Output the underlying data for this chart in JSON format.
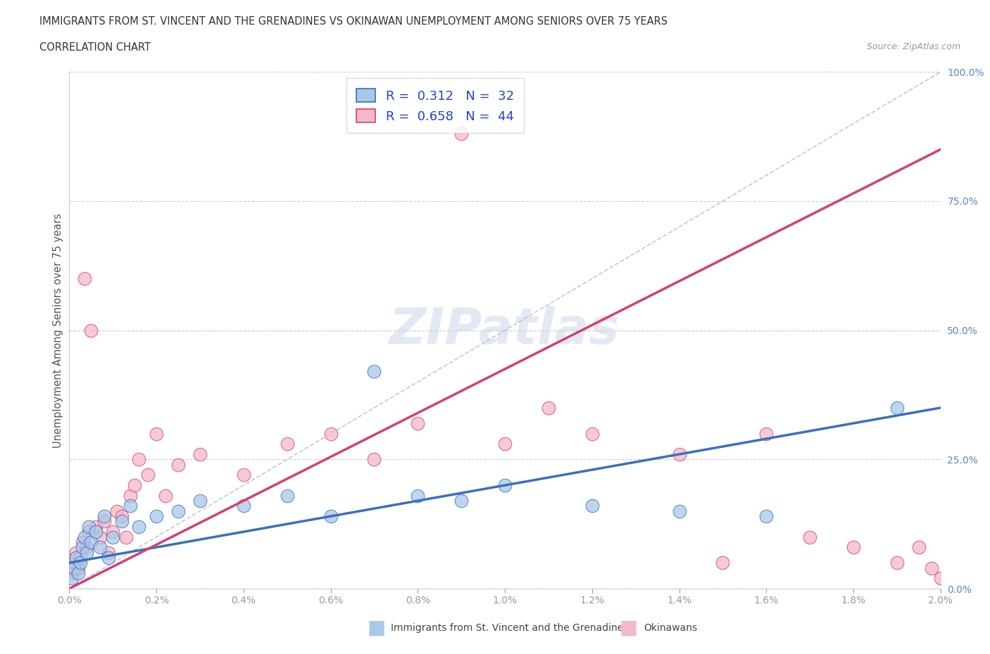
{
  "title_line1": "IMMIGRANTS FROM ST. VINCENT AND THE GRENADINES VS OKINAWAN UNEMPLOYMENT AMONG SENIORS OVER 75 YEARS",
  "title_line2": "CORRELATION CHART",
  "source": "Source: ZipAtlas.com",
  "ylabel": "Unemployment Among Seniors over 75 years",
  "blue_label": "Immigrants from St. Vincent and the Grenadines",
  "pink_label": "Okinawans",
  "blue_R": 0.312,
  "blue_N": 32,
  "pink_R": 0.658,
  "pink_N": 44,
  "blue_color": "#a8c8e8",
  "pink_color": "#f4b8c8",
  "blue_line_color": "#3a6fbf",
  "pink_line_color": "#d44070",
  "xlim": [
    0.0,
    0.02
  ],
  "ylim": [
    0.0,
    1.0
  ],
  "xtick_labels": [
    "0.0%",
    "0.2%",
    "0.4%",
    "0.6%",
    "0.8%",
    "1.0%",
    "1.2%",
    "1.4%",
    "1.6%",
    "1.8%",
    "2.0%"
  ],
  "xtick_values": [
    0.0,
    0.002,
    0.004,
    0.006,
    0.008,
    0.01,
    0.012,
    0.014,
    0.016,
    0.018,
    0.02
  ],
  "ytick_labels": [
    "0.0%",
    "25.0%",
    "50.0%",
    "75.0%",
    "100.0%"
  ],
  "ytick_values": [
    0.0,
    0.25,
    0.5,
    0.75,
    1.0
  ],
  "blue_x": [
    5e-05,
    0.0001,
    0.00015,
    0.0002,
    0.00025,
    0.0003,
    0.00035,
    0.0004,
    0.00045,
    0.0005,
    0.0006,
    0.0007,
    0.0008,
    0.0009,
    0.001,
    0.0012,
    0.0014,
    0.0016,
    0.002,
    0.0025,
    0.003,
    0.004,
    0.005,
    0.006,
    0.007,
    0.008,
    0.009,
    0.01,
    0.012,
    0.014,
    0.016,
    0.019
  ],
  "blue_y": [
    0.02,
    0.04,
    0.06,
    0.03,
    0.05,
    0.08,
    0.1,
    0.07,
    0.12,
    0.09,
    0.11,
    0.08,
    0.14,
    0.06,
    0.1,
    0.13,
    0.16,
    0.12,
    0.14,
    0.15,
    0.17,
    0.16,
    0.18,
    0.14,
    0.42,
    0.18,
    0.17,
    0.2,
    0.16,
    0.15,
    0.14,
    0.35
  ],
  "pink_x": [
    5e-05,
    0.0001,
    0.00015,
    0.0002,
    0.00025,
    0.0003,
    0.00035,
    0.0004,
    0.00045,
    0.0005,
    0.0006,
    0.0007,
    0.0008,
    0.0009,
    0.001,
    0.0011,
    0.0012,
    0.0013,
    0.0014,
    0.0015,
    0.0016,
    0.0018,
    0.002,
    0.0022,
    0.0025,
    0.003,
    0.004,
    0.005,
    0.006,
    0.007,
    0.008,
    0.009,
    0.01,
    0.011,
    0.012,
    0.014,
    0.015,
    0.016,
    0.017,
    0.018,
    0.019,
    0.0195,
    0.0198,
    0.02
  ],
  "pink_y": [
    0.03,
    0.05,
    0.07,
    0.04,
    0.06,
    0.09,
    0.6,
    0.08,
    0.11,
    0.5,
    0.12,
    0.1,
    0.13,
    0.07,
    0.11,
    0.15,
    0.14,
    0.1,
    0.18,
    0.2,
    0.25,
    0.22,
    0.3,
    0.18,
    0.24,
    0.26,
    0.22,
    0.28,
    0.3,
    0.25,
    0.32,
    0.88,
    0.28,
    0.35,
    0.3,
    0.26,
    0.05,
    0.3,
    0.1,
    0.08,
    0.05,
    0.08,
    0.04,
    0.02
  ],
  "watermark": "ZIPatlas",
  "background_color": "#ffffff",
  "grid_color": "#cccccc",
  "blue_line_y0": 0.05,
  "blue_line_y1": 0.35,
  "pink_line_y0": 0.0,
  "pink_line_y1": 0.85
}
